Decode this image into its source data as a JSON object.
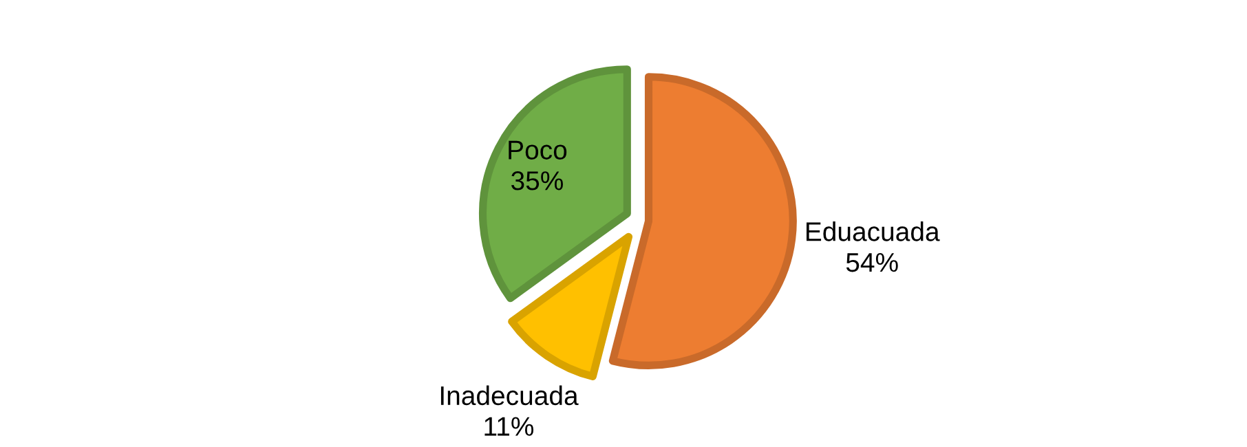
{
  "chart_data": {
    "type": "pie",
    "categories": [
      "Eduacuada",
      "Inadecuada",
      "Poco"
    ],
    "values": [
      54,
      11,
      35
    ],
    "colors": [
      "#ed7d31",
      "#ffc000",
      "#70ad47"
    ],
    "value_labels": [
      "54%",
      "11%",
      "35%"
    ]
  }
}
